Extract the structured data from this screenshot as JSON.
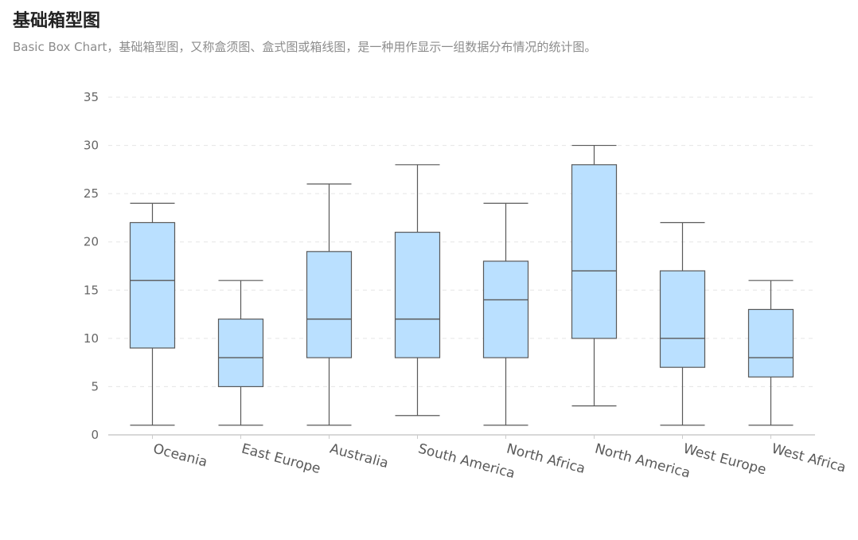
{
  "page": {
    "title": "基础箱型图",
    "subtitle": "Basic Box Chart，基础箱型图，又称盒须图、盒式图或箱线图，是一种用作显示一组数据分布情况的统计图。"
  },
  "chart_data": {
    "type": "box",
    "categories": [
      "Oceania",
      "East Europe",
      "Australia",
      "South America",
      "North Africa",
      "North America",
      "West Europe",
      "West Africa"
    ],
    "series": [
      {
        "low": [
          1,
          1,
          1,
          2,
          1,
          3,
          1,
          1
        ],
        "q1": [
          9,
          5,
          8,
          8,
          8,
          10,
          7,
          6
        ],
        "median": [
          16,
          8,
          12,
          12,
          14,
          17,
          10,
          8
        ],
        "q3": [
          22,
          12,
          19,
          21,
          18,
          28,
          17,
          13
        ],
        "high": [
          24,
          16,
          26,
          28,
          24,
          30,
          22,
          16
        ]
      }
    ],
    "ylim": [
      0,
      35
    ],
    "yticks": [
      0,
      5,
      10,
      15,
      20,
      25,
      30,
      35
    ],
    "grid": true,
    "colors": {
      "box_fill": "#BAE0FF",
      "box_stroke": "#595959",
      "grid": "#e5e5e5",
      "axis": "#cccccc"
    }
  }
}
